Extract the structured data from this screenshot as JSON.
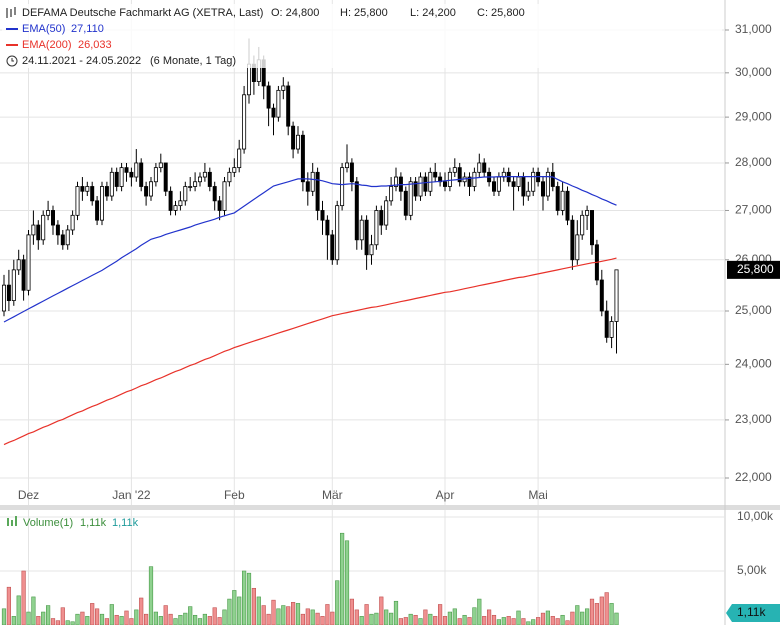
{
  "header": {
    "symbol": "DEFAMA Deutsche Fachmarkt AG (XETRA, Last)",
    "o": "O: 24,800",
    "h": "H: 25,800",
    "l": "L: 24,200",
    "c": "C: 25,800",
    "range": "24.11.2021 - 24.05.2022",
    "period": "(6 Monate, 1 Tag)"
  },
  "chart_data": {
    "type": "candlestick",
    "categories": [
      null,
      null,
      null,
      null,
      null,
      "Dez",
      null,
      null,
      null,
      null,
      null,
      null,
      null,
      null,
      null,
      null,
      null,
      null,
      null,
      null,
      null,
      null,
      null,
      null,
      null,
      null,
      "Jan '22",
      null,
      null,
      null,
      null,
      null,
      null,
      null,
      null,
      null,
      null,
      null,
      null,
      null,
      null,
      null,
      null,
      null,
      null,
      null,
      null,
      "Feb",
      null,
      null,
      null,
      null,
      null,
      null,
      null,
      null,
      null,
      null,
      null,
      null,
      null,
      null,
      null,
      null,
      null,
      null,
      null,
      "Mär",
      null,
      null,
      null,
      null,
      null,
      null,
      null,
      null,
      null,
      null,
      null,
      null,
      null,
      null,
      null,
      null,
      null,
      null,
      null,
      null,
      null,
      null,
      "Apr",
      null,
      null,
      null,
      null,
      null,
      null,
      null,
      null,
      null,
      null,
      null,
      null,
      null,
      null,
      null,
      null,
      null,
      null,
      "Mai",
      null,
      null,
      null,
      null,
      null,
      null,
      null,
      null,
      null,
      null,
      null,
      null,
      null,
      null,
      null,
      null
    ],
    "open": [
      25000,
      25500,
      25200,
      25800,
      26000,
      25400,
      26500,
      26700,
      26400,
      26900,
      27000,
      26700,
      26500,
      26300,
      26600,
      26900,
      27500,
      27400,
      27500,
      27200,
      26800,
      27500,
      27300,
      27800,
      27500,
      27900,
      27800,
      27700,
      28000,
      27500,
      27300,
      27600,
      27900,
      28000,
      27400,
      27000,
      27100,
      27200,
      27500,
      27500,
      27600,
      27700,
      27800,
      27500,
      27200,
      27000,
      27600,
      27800,
      27900,
      28300,
      29500,
      30200,
      29800,
      30300,
      29700,
      29200,
      29000,
      29600,
      29700,
      28800,
      28300,
      28600,
      27600,
      27400,
      27800,
      27000,
      26800,
      26500,
      26000,
      27100,
      27900,
      28000,
      27600,
      26400,
      26800,
      26100,
      26300,
      27000,
      26700,
      27200,
      27500,
      27700,
      27400,
      26900,
      27600,
      27300,
      27700,
      27400,
      27800,
      27700,
      27600,
      27500,
      27800,
      27900,
      27600,
      27700,
      27500,
      27800,
      28000,
      27800,
      27600,
      27400,
      27700,
      27800,
      27600,
      27500,
      27700,
      27300,
      27400,
      27800,
      27600,
      27300,
      27800,
      27500,
      27000,
      27400,
      26800,
      26000,
      26500,
      26900,
      27000,
      26300,
      25600,
      25000,
      24500,
      24800
    ],
    "high": [
      25700,
      25800,
      26000,
      26200,
      26100,
      26600,
      27000,
      26800,
      27000,
      27200,
      27100,
      26800,
      26600,
      26700,
      27000,
      27600,
      27700,
      27600,
      27600,
      27300,
      27600,
      27600,
      27900,
      27900,
      28000,
      28000,
      27900,
      28300,
      28100,
      27600,
      27700,
      28000,
      28200,
      28000,
      27500,
      27200,
      27400,
      27600,
      27700,
      27800,
      27800,
      28000,
      27900,
      27600,
      27300,
      27700,
      27900,
      28100,
      28500,
      29700,
      30800,
      30400,
      30600,
      30400,
      29800,
      29300,
      29700,
      29900,
      29800,
      28900,
      28800,
      28700,
      27800,
      28000,
      27900,
      27200,
      26900,
      26600,
      27200,
      28000,
      28400,
      28100,
      27700,
      26900,
      26900,
      26500,
      27100,
      27100,
      27300,
      27700,
      27900,
      27800,
      27500,
      27700,
      27700,
      27800,
      27800,
      27900,
      28000,
      27800,
      27800,
      27900,
      28100,
      28000,
      27800,
      27800,
      27900,
      28200,
      28100,
      27900,
      27700,
      27800,
      27900,
      27900,
      27700,
      27800,
      27800,
      27600,
      27900,
      27900,
      27700,
      27900,
      28000,
      27600,
      27600,
      27500,
      26900,
      26800,
      27000,
      27100,
      27000,
      26400,
      25800,
      25200,
      24900,
      25800
    ],
    "low": [
      24900,
      25000,
      25100,
      25700,
      25200,
      25300,
      26300,
      26200,
      26300,
      26800,
      26500,
      26300,
      26200,
      26200,
      26500,
      26800,
      27200,
      27300,
      27100,
      26700,
      26700,
      27200,
      27200,
      27400,
      27400,
      27600,
      27500,
      27600,
      27400,
      27100,
      27200,
      27500,
      27800,
      27300,
      26900,
      26900,
      27000,
      27100,
      27400,
      27400,
      27500,
      27600,
      27400,
      27000,
      26800,
      26900,
      27500,
      27700,
      27800,
      28200,
      29300,
      29500,
      29700,
      29400,
      28800,
      28600,
      28900,
      29400,
      28600,
      28100,
      28200,
      27400,
      27100,
      27300,
      26800,
      26500,
      26000,
      25900,
      25900,
      27000,
      27800,
      27400,
      26200,
      26200,
      25800,
      25900,
      26200,
      26500,
      26600,
      27100,
      27400,
      27200,
      26800,
      26800,
      27200,
      27200,
      27300,
      27300,
      27600,
      27500,
      27400,
      27400,
      27700,
      27500,
      27500,
      27300,
      27400,
      27700,
      27700,
      27500,
      27300,
      27300,
      27600,
      27500,
      27000,
      27400,
      27100,
      27200,
      27300,
      27500,
      27000,
      27200,
      27400,
      26900,
      26900,
      26700,
      25800,
      25900,
      26400,
      26600,
      26100,
      25500,
      24900,
      24400,
      24300,
      24200
    ],
    "close": [
      25500,
      25200,
      25800,
      26000,
      25400,
      26500,
      26700,
      26400,
      26900,
      27000,
      26700,
      26500,
      26300,
      26600,
      26900,
      27500,
      27400,
      27500,
      27200,
      26800,
      27500,
      27300,
      27800,
      27500,
      27900,
      27800,
      27700,
      28000,
      27500,
      27300,
      27600,
      27900,
      28000,
      27400,
      27000,
      27100,
      27200,
      27500,
      27500,
      27600,
      27700,
      27800,
      27500,
      27200,
      27000,
      27600,
      27800,
      27900,
      28300,
      29500,
      30200,
      29800,
      30300,
      29700,
      29200,
      29000,
      29600,
      29700,
      28800,
      28300,
      28600,
      27600,
      27400,
      27800,
      27000,
      26800,
      26500,
      26000,
      27100,
      27900,
      28000,
      27600,
      26400,
      26800,
      26100,
      26300,
      27000,
      26700,
      27200,
      27500,
      27700,
      27400,
      26900,
      27600,
      27300,
      27700,
      27400,
      27800,
      27700,
      27600,
      27500,
      27800,
      27900,
      27600,
      27700,
      27500,
      27800,
      28000,
      27800,
      27600,
      27400,
      27700,
      27800,
      27600,
      27500,
      27700,
      27300,
      27400,
      27800,
      27600,
      27300,
      27800,
      27500,
      27000,
      27400,
      26800,
      26000,
      26500,
      26900,
      27000,
      26300,
      25600,
      25000,
      24500,
      24800,
      25800
    ],
    "up_color": "#ffffff",
    "down_color": "#000000",
    "log_scale": true,
    "grid": true,
    "ylim": [
      21550,
      31720
    ],
    "yticks": [
      {
        "value": 22000,
        "label": "22,000"
      },
      {
        "value": 23000,
        "label": "23,000"
      },
      {
        "value": 24000,
        "label": "24,000"
      },
      {
        "value": 25000,
        "label": "25,000"
      },
      {
        "value": 26000,
        "label": "26,000"
      },
      {
        "value": 27000,
        "label": "27,000"
      },
      {
        "value": 28000,
        "label": "28,000"
      },
      {
        "value": 29000,
        "label": "29,000"
      },
      {
        "value": 30000,
        "label": "30,000"
      },
      {
        "value": 31000,
        "label": "31,000"
      }
    ],
    "last_price": {
      "value": 25800,
      "label": "25,800"
    },
    "series": [
      {
        "name": "EMA(50)",
        "legend_value": "27,110",
        "color": "#2233cc",
        "values": [
          24790,
          24840,
          24890,
          24940,
          24990,
          25040,
          25090,
          25140,
          25190,
          25240,
          25290,
          25340,
          25390,
          25440,
          25490,
          25540,
          25590,
          25640,
          25690,
          25740,
          25790,
          25850,
          25910,
          25970,
          26040,
          26100,
          26160,
          26220,
          26290,
          26350,
          26410,
          26440,
          26470,
          26510,
          26540,
          26570,
          26600,
          26630,
          26660,
          26700,
          26730,
          26760,
          26790,
          26820,
          26860,
          26890,
          26920,
          26950,
          27020,
          27090,
          27160,
          27230,
          27300,
          27370,
          27440,
          27510,
          27540,
          27570,
          27600,
          27630,
          27660,
          27660,
          27660,
          27650,
          27640,
          27620,
          27590,
          27560,
          27550,
          27540,
          27550,
          27560,
          27550,
          27530,
          27520,
          27500,
          27500,
          27510,
          27510,
          27520,
          27530,
          27540,
          27540,
          27550,
          27560,
          27570,
          27580,
          27590,
          27600,
          27610,
          27620,
          27630,
          27640,
          27650,
          27660,
          27670,
          27680,
          27690,
          27700,
          27700,
          27700,
          27710,
          27710,
          27710,
          27710,
          27710,
          27710,
          27710,
          27710,
          27710,
          27710,
          27710,
          27700,
          27650,
          27600,
          27560,
          27510,
          27470,
          27420,
          27380,
          27330,
          27290,
          27240,
          27200,
          27150,
          27110
        ]
      },
      {
        "name": "EMA(200)",
        "legend_value": "26,033",
        "color": "#e8322a",
        "values": [
          22570,
          22610,
          22640,
          22680,
          22720,
          22760,
          22790,
          22830,
          22870,
          22900,
          22940,
          22980,
          23010,
          23050,
          23090,
          23130,
          23160,
          23200,
          23240,
          23270,
          23310,
          23350,
          23380,
          23420,
          23460,
          23500,
          23530,
          23570,
          23610,
          23640,
          23680,
          23720,
          23750,
          23790,
          23830,
          23870,
          23900,
          23940,
          23980,
          24010,
          24050,
          24090,
          24120,
          24160,
          24200,
          24240,
          24270,
          24310,
          24340,
          24370,
          24400,
          24430,
          24460,
          24490,
          24520,
          24550,
          24580,
          24610,
          24640,
          24670,
          24700,
          24730,
          24760,
          24790,
          24820,
          24850,
          24880,
          24910,
          24930,
          24950,
          24970,
          24990,
          25010,
          25030,
          25050,
          25070,
          25080,
          25100,
          25120,
          25140,
          25160,
          25180,
          25200,
          25220,
          25240,
          25260,
          25280,
          25300,
          25320,
          25340,
          25360,
          25370,
          25390,
          25410,
          25430,
          25450,
          25470,
          25490,
          25510,
          25530,
          25550,
          25570,
          25590,
          25610,
          25630,
          25650,
          25660,
          25680,
          25700,
          25720,
          25740,
          25760,
          25780,
          25800,
          25820,
          25840,
          25860,
          25880,
          25900,
          25920,
          25940,
          25950,
          25970,
          25990,
          26010,
          26033
        ]
      }
    ],
    "volume": {
      "type": "bar",
      "name": "Volume(1)",
      "legend_values": [
        "1,11k",
        "1,11k"
      ],
      "up_color": "#8fd18f",
      "down_color": "#ef8f8f",
      "values": [
        1500,
        3500,
        800,
        2700,
        5000,
        1200,
        2600,
        800,
        1200,
        1800,
        600,
        400,
        1600,
        400,
        300,
        1000,
        1200,
        800,
        2000,
        1500,
        1000,
        600,
        1900,
        900,
        800,
        1300,
        600,
        1400,
        2500,
        1000,
        5400,
        1200,
        800,
        1800,
        1000,
        600,
        900,
        1100,
        1700,
        900,
        600,
        1000,
        800,
        1600,
        700,
        1400,
        2400,
        3200,
        2600,
        5000,
        4800,
        3400,
        2600,
        1800,
        1000,
        2300,
        1500,
        1800,
        1700,
        2100,
        2000,
        1000,
        1500,
        1400,
        1100,
        800,
        1900,
        1200,
        4100,
        8500,
        7800,
        2400,
        1400,
        800,
        1900,
        1000,
        1100,
        2600,
        1400,
        1100,
        2200,
        600,
        700,
        1000,
        900,
        600,
        1400,
        1000,
        800,
        1900,
        800,
        1200,
        1500,
        600,
        900,
        700,
        1600,
        2400,
        800,
        1400,
        900,
        500,
        700,
        800,
        600,
        1300,
        600,
        300,
        500,
        700,
        1100,
        1300,
        800,
        600,
        900,
        400,
        1200,
        1800,
        1200,
        1500,
        2400,
        2000,
        2600,
        3000,
        2000,
        1110
      ],
      "ylim": [
        0,
        10650
      ],
      "yticks": [
        {
          "value": 5000,
          "label": "5,00k"
        },
        {
          "value": 10000,
          "label": "10,00k"
        }
      ],
      "last": {
        "value": 1110,
        "label": "1,11k"
      }
    }
  }
}
